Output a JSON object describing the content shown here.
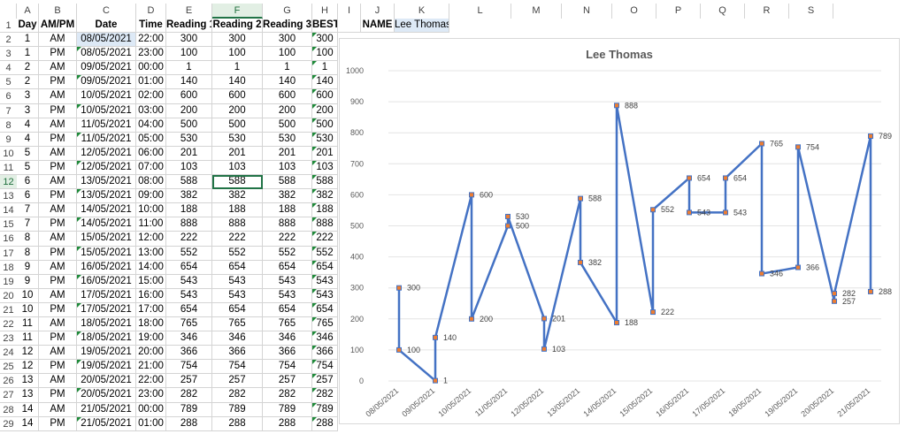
{
  "columns": [
    "A",
    "B",
    "C",
    "D",
    "E",
    "F",
    "G",
    "H",
    "I",
    "J",
    "K",
    "L",
    "M",
    "N",
    "O",
    "P",
    "Q",
    "R",
    "S"
  ],
  "selected_column": "F",
  "selected_row": 12,
  "header_row": [
    "Day",
    "AM/PM",
    "Date",
    "Time",
    "Reading 1",
    "Reading 2",
    "Reading 3",
    "BEST"
  ],
  "name_label": "NAME",
  "name_value": "Lee Thomas",
  "rows": [
    [
      "1",
      "AM",
      "08/05/2021",
      "22:00",
      "300",
      "300",
      "300",
      "300"
    ],
    [
      "1",
      "PM",
      "08/05/2021",
      "23:00",
      "100",
      "100",
      "100",
      "100"
    ],
    [
      "2",
      "AM",
      "09/05/2021",
      "00:00",
      "1",
      "1",
      "1",
      "1"
    ],
    [
      "2",
      "PM",
      "09/05/2021",
      "01:00",
      "140",
      "140",
      "140",
      "140"
    ],
    [
      "3",
      "AM",
      "10/05/2021",
      "02:00",
      "600",
      "600",
      "600",
      "600"
    ],
    [
      "3",
      "PM",
      "10/05/2021",
      "03:00",
      "200",
      "200",
      "200",
      "200"
    ],
    [
      "4",
      "AM",
      "11/05/2021",
      "04:00",
      "500",
      "500",
      "500",
      "500"
    ],
    [
      "4",
      "PM",
      "11/05/2021",
      "05:00",
      "530",
      "530",
      "530",
      "530"
    ],
    [
      "5",
      "AM",
      "12/05/2021",
      "06:00",
      "201",
      "201",
      "201",
      "201"
    ],
    [
      "5",
      "PM",
      "12/05/2021",
      "07:00",
      "103",
      "103",
      "103",
      "103"
    ],
    [
      "6",
      "AM",
      "13/05/2021",
      "08:00",
      "588",
      "588",
      "588",
      "588"
    ],
    [
      "6",
      "PM",
      "13/05/2021",
      "09:00",
      "382",
      "382",
      "382",
      "382"
    ],
    [
      "7",
      "AM",
      "14/05/2021",
      "10:00",
      "188",
      "188",
      "188",
      "188"
    ],
    [
      "7",
      "PM",
      "14/05/2021",
      "11:00",
      "888",
      "888",
      "888",
      "888"
    ],
    [
      "8",
      "AM",
      "15/05/2021",
      "12:00",
      "222",
      "222",
      "222",
      "222"
    ],
    [
      "8",
      "PM",
      "15/05/2021",
      "13:00",
      "552",
      "552",
      "552",
      "552"
    ],
    [
      "9",
      "AM",
      "16/05/2021",
      "14:00",
      "654",
      "654",
      "654",
      "654"
    ],
    [
      "9",
      "PM",
      "16/05/2021",
      "15:00",
      "543",
      "543",
      "543",
      "543"
    ],
    [
      "10",
      "AM",
      "17/05/2021",
      "16:00",
      "543",
      "543",
      "543",
      "543"
    ],
    [
      "10",
      "PM",
      "17/05/2021",
      "17:00",
      "654",
      "654",
      "654",
      "654"
    ],
    [
      "11",
      "AM",
      "18/05/2021",
      "18:00",
      "765",
      "765",
      "765",
      "765"
    ],
    [
      "11",
      "PM",
      "18/05/2021",
      "19:00",
      "346",
      "346",
      "346",
      "346"
    ],
    [
      "12",
      "AM",
      "19/05/2021",
      "20:00",
      "366",
      "366",
      "366",
      "366"
    ],
    [
      "12",
      "PM",
      "19/05/2021",
      "21:00",
      "754",
      "754",
      "754",
      "754"
    ],
    [
      "13",
      "AM",
      "20/05/2021",
      "22:00",
      "257",
      "257",
      "257",
      "257"
    ],
    [
      "13",
      "PM",
      "20/05/2021",
      "23:00",
      "282",
      "282",
      "282",
      "282"
    ],
    [
      "14",
      "AM",
      "21/05/2021",
      "00:00",
      "789",
      "789",
      "789",
      "789"
    ],
    [
      "14",
      "PM",
      "21/05/2021",
      "01:00",
      "288",
      "288",
      "288",
      "288"
    ]
  ],
  "chart_data": {
    "type": "line",
    "title": "Lee Thomas",
    "ylim": [
      0,
      1000
    ],
    "yticks": [
      "0",
      "100",
      "200",
      "300",
      "400",
      "500",
      "600",
      "700",
      "800",
      "900",
      "1000"
    ],
    "categories": [
      "08/05/2021",
      "09/05/2021",
      "10/05/2021",
      "11/05/2021",
      "12/05/2021",
      "13/05/2021",
      "14/05/2021",
      "15/05/2021",
      "16/05/2021",
      "17/05/2021",
      "18/05/2021",
      "19/05/2021",
      "20/05/2021",
      "21/05/2021"
    ],
    "points": [
      {
        "date": "08/05/2021",
        "value": 300
      },
      {
        "date": "08/05/2021",
        "value": 100
      },
      {
        "date": "09/05/2021",
        "value": 1
      },
      {
        "date": "09/05/2021",
        "value": 140
      },
      {
        "date": "10/05/2021",
        "value": 600
      },
      {
        "date": "10/05/2021",
        "value": 200
      },
      {
        "date": "11/05/2021",
        "value": 500
      },
      {
        "date": "11/05/2021",
        "value": 530
      },
      {
        "date": "12/05/2021",
        "value": 201
      },
      {
        "date": "12/05/2021",
        "value": 103
      },
      {
        "date": "13/05/2021",
        "value": 588
      },
      {
        "date": "13/05/2021",
        "value": 382
      },
      {
        "date": "14/05/2021",
        "value": 188
      },
      {
        "date": "14/05/2021",
        "value": 888
      },
      {
        "date": "15/05/2021",
        "value": 222
      },
      {
        "date": "15/05/2021",
        "value": 552
      },
      {
        "date": "16/05/2021",
        "value": 654
      },
      {
        "date": "16/05/2021",
        "value": 543
      },
      {
        "date": "17/05/2021",
        "value": 543
      },
      {
        "date": "17/05/2021",
        "value": 654
      },
      {
        "date": "18/05/2021",
        "value": 765
      },
      {
        "date": "18/05/2021",
        "value": 346
      },
      {
        "date": "19/05/2021",
        "value": 366
      },
      {
        "date": "19/05/2021",
        "value": 754
      },
      {
        "date": "20/05/2021",
        "value": 257
      },
      {
        "date": "20/05/2021",
        "value": 282
      },
      {
        "date": "21/05/2021",
        "value": 789
      },
      {
        "date": "21/05/2021",
        "value": 288
      }
    ],
    "data_labels": [
      "300",
      "100",
      "1",
      "140",
      "600",
      "200",
      "500",
      "530",
      "201",
      "103",
      "588",
      "382",
      "188",
      "888",
      "222",
      "552",
      "654",
      "543",
      "543",
      "654",
      "765",
      "346",
      "366",
      "754",
      "257",
      "282",
      "789",
      "288"
    ],
    "grid": true,
    "line_color": "#4472c4",
    "marker_color": "#ed7d31"
  }
}
